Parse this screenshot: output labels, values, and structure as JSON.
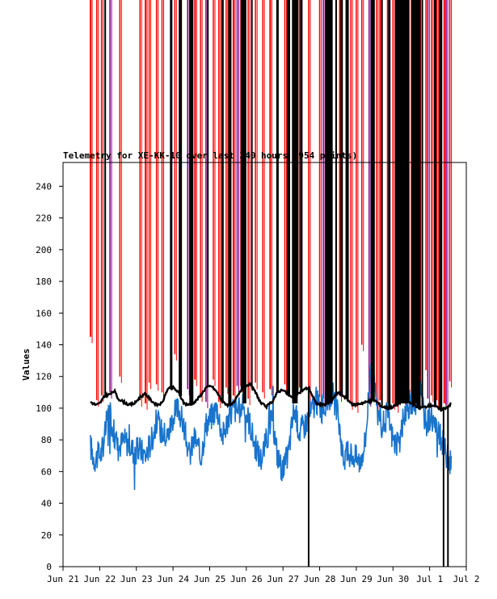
{
  "chart_data": {
    "type": "line",
    "title": "Telemetry for XE-KK-10 over last 240 hours (954 points)",
    "ylabel": "Values",
    "xlabel": "",
    "ylim": [
      0,
      255
    ],
    "yticks": [
      0,
      20,
      40,
      60,
      80,
      100,
      120,
      140,
      160,
      180,
      200,
      220,
      240
    ],
    "xlim_days": [
      "Jun 21",
      "Jul 2"
    ],
    "xticks": [
      "Jun 21",
      "Jun 22",
      "Jun 23",
      "Jun 24",
      "Jun 25",
      "Jun 26",
      "Jun 27",
      "Jun 28",
      "Jun 29",
      "Jun 30",
      "Jul 1",
      "Jul 2"
    ],
    "grid": false,
    "legend": "none",
    "series": [
      {
        "color": "#000000",
        "style": "line",
        "x_days": [
          21.75,
          21.9,
          22.0,
          22.15,
          22.3,
          22.4,
          22.5,
          22.65,
          22.8,
          22.95,
          23.1,
          23.25,
          23.4,
          23.55,
          23.7,
          23.85,
          24.0,
          24.15,
          24.3,
          24.45,
          24.6,
          24.75,
          24.9,
          25.05,
          25.2,
          25.35,
          25.5,
          25.65,
          25.8,
          25.95,
          26.1,
          26.25,
          26.4,
          26.55,
          26.7,
          26.85,
          27.0,
          27.15,
          27.3,
          27.5,
          27.7,
          27.9,
          28.1,
          28.3,
          28.5,
          28.7,
          28.9,
          29.1,
          29.3,
          29.5,
          29.7,
          29.9,
          30.1,
          30.3,
          30.5,
          30.7,
          30.9,
          31.1,
          31.3,
          31.5,
          31.6
        ],
        "values": [
          104,
          102,
          103,
          108,
          109,
          111,
          106,
          104,
          102,
          103,
          107,
          109,
          105,
          102,
          103,
          112,
          113,
          110,
          103,
          102,
          104,
          108,
          113,
          114,
          110,
          104,
          102,
          103,
          109,
          114,
          115,
          110,
          103,
          101,
          104,
          110,
          112,
          108,
          106,
          111,
          113,
          103,
          102,
          104,
          110,
          107,
          102,
          103,
          104,
          105,
          101,
          100,
          102,
          106,
          103,
          100,
          101,
          102,
          99,
          101,
          103
        ],
        "spikes_up_days": [
          22.15,
          23.95,
          24.2,
          24.5,
          24.95,
          25.35,
          25.55,
          25.9,
          26.15,
          26.85,
          27.15,
          27.3,
          27.4,
          27.5,
          28.2,
          28.3,
          28.45,
          28.6,
          28.75,
          29.45,
          29.7,
          29.9,
          30.1,
          30.15,
          30.3,
          30.4,
          30.55,
          30.7,
          30.8,
          31.15,
          31.3
        ],
        "spikes_down_days": [
          27.7,
          31.38,
          31.5
        ]
      },
      {
        "color": "#1874cd",
        "style": "line",
        "x_days": [
          21.75,
          21.85,
          21.95,
          22.05,
          22.15,
          22.25,
          22.35,
          22.5,
          22.65,
          22.8,
          22.95,
          23.1,
          23.25,
          23.4,
          23.55,
          23.7,
          23.85,
          24.0,
          24.15,
          24.3,
          24.45,
          24.6,
          24.75,
          24.9,
          25.05,
          25.2,
          25.35,
          25.5,
          25.65,
          25.8,
          25.95,
          26.1,
          26.25,
          26.4,
          26.55,
          26.7,
          26.85,
          27.0,
          27.15,
          27.3,
          27.45,
          27.6,
          27.75,
          27.9,
          28.05,
          28.2,
          28.35,
          28.5,
          28.65,
          28.8,
          28.95,
          29.1,
          29.25,
          29.4,
          29.55,
          29.7,
          29.85,
          30.0,
          30.15,
          30.3,
          30.45,
          30.6,
          30.75,
          30.9,
          31.05,
          31.2,
          31.35,
          31.5,
          31.6
        ],
        "values": [
          76,
          68,
          70,
          72,
          85,
          100,
          88,
          75,
          80,
          78,
          72,
          74,
          70,
          79,
          92,
          85,
          82,
          95,
          100,
          88,
          70,
          82,
          68,
          90,
          95,
          101,
          82,
          93,
          100,
          98,
          101,
          90,
          75,
          68,
          80,
          95,
          70,
          60,
          72,
          100,
          85,
          90,
          97,
          105,
          99,
          104,
          110,
          95,
          68,
          72,
          70,
          66,
          80,
          130,
          100,
          88,
          96,
          80,
          75,
          95,
          103,
          99,
          110,
          90,
          96,
          85,
          79,
          68,
          65
        ],
        "noise": 9
      },
      {
        "color": "#ff0000",
        "style": "spikes",
        "spikes_up_days": [
          21.75,
          21.92,
          22.05,
          22.55,
          23.1,
          23.25,
          23.35,
          23.55,
          23.7,
          24.05,
          24.6,
          24.75,
          25.1,
          25.25,
          25.45,
          25.65,
          25.85,
          26.05,
          26.25,
          26.45,
          26.65,
          27.05,
          27.45,
          27.7,
          28.0,
          28.55,
          28.85,
          29.0,
          29.15,
          29.55,
          29.65,
          29.85,
          30.0,
          30.1,
          30.5,
          30.6,
          30.75,
          30.9,
          31.05,
          31.2,
          31.4,
          31.55
        ],
        "spike_base": [
          145,
          105,
          108,
          120,
          105,
          103,
          116,
          115,
          110,
          134,
          118,
          108,
          118,
          104,
          113,
          108,
          114,
          106,
          116,
          110,
          112,
          115,
          113,
          105,
          107,
          108,
          103,
          101,
          140,
          102,
          105,
          103,
          103,
          101,
          103,
          105,
          110,
          124,
          108,
          105,
          103,
          117
        ]
      },
      {
        "color": "#800080",
        "style": "spikes",
        "spikes_up_days": [
          22.28,
          24.4,
          24.9,
          25.75,
          27.3,
          28.1,
          29.35,
          30.35,
          30.95,
          31.45
        ],
        "spike_base": [
          110,
          112,
          104,
          114,
          150,
          106,
          105,
          102,
          106,
          102
        ]
      }
    ]
  }
}
